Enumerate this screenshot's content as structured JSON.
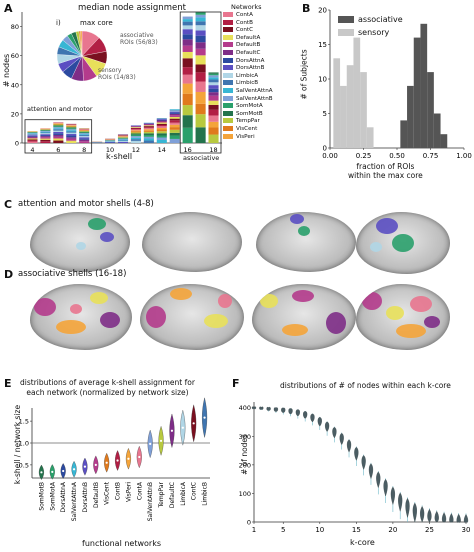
{
  "panels": {
    "A": {
      "letter": "A",
      "title": "median node assignment",
      "ylabel": "# nodes",
      "xlabel": "k-shell",
      "box_label_left": "attention and motor",
      "box_label_right": "associative",
      "inset_label": "i)",
      "inset_max_core": "max core",
      "inset_assoc": "associative\nROIs (56/83)",
      "inset_sensory": "sensory\nROIs (14/83)",
      "legend_title": "Networks",
      "networks": [
        "ContA",
        "ContB",
        "ContC",
        "DefaultA",
        "DefaultB",
        "DefaultC",
        "DorsAttnA",
        "DorsAttnB",
        "LimbicA",
        "LimbicB",
        "SalVentAttnA",
        "SalVentAttnB",
        "SomMotA",
        "SomMotB",
        "TempPar",
        "VisCent",
        "VisPeri"
      ],
      "network_colors": [
        "#e8768f",
        "#b21f44",
        "#7a1020",
        "#e8e05a",
        "#b43b8c",
        "#7e2d87",
        "#2c4aa0",
        "#5b4fc2",
        "#b0d6e6",
        "#3f75b0",
        "#38b6d4",
        "#7fa0d8",
        "#2aa06b",
        "#23734c",
        "#b8c93f",
        "#e07a1d",
        "#f4a43a"
      ],
      "y_ticks": [
        "0",
        "20",
        "40",
        "60",
        "80"
      ],
      "chart_data": {
        "type": "bar",
        "stacked": true,
        "categories": [
          "4",
          "5",
          "6",
          "7",
          "8",
          "9",
          "10",
          "11",
          "12",
          "13",
          "14",
          "15",
          "16",
          "17",
          "18"
        ],
        "totals": [
          8,
          10,
          14,
          13,
          10,
          1,
          3,
          6,
          12,
          14,
          17,
          23,
          86,
          89,
          48
        ],
        "x_tick_labels": [
          "4",
          "6",
          "8",
          "10",
          "12",
          "14",
          "16",
          "18"
        ],
        "ylim": [
          0,
          90
        ]
      },
      "pie_chart": {
        "type": "pie",
        "values": [
          12,
          10,
          8,
          10,
          9,
          8,
          7,
          6,
          6,
          5,
          5,
          4,
          3,
          3,
          2,
          1,
          1
        ]
      }
    },
    "B": {
      "letter": "B",
      "ylabel": "# of Subjects",
      "xlabel": "fraction of ROIs\nwithin the max core",
      "legend": [
        "associative",
        "sensory"
      ],
      "colors": {
        "associative": "#555555",
        "sensory": "#c8c8c8"
      },
      "x_ticks": [
        "0.00",
        "0.25",
        "0.50",
        "0.75",
        "1.00"
      ],
      "y_ticks": [
        "0",
        "5",
        "10",
        "15",
        "20"
      ],
      "chart_data": {
        "type": "bar",
        "ylim": [
          0,
          20
        ],
        "xlim": [
          0,
          1
        ],
        "series": [
          {
            "name": "sensory",
            "bin_centers": [
              0.05,
              0.1,
              0.15,
              0.2,
              0.25,
              0.3
            ],
            "values": [
              13,
              9,
              12,
              16,
              11,
              3
            ]
          },
          {
            "name": "associative",
            "bin_centers": [
              0.55,
              0.6,
              0.65,
              0.7,
              0.75,
              0.8,
              0.85
            ],
            "values": [
              4,
              9,
              16,
              18,
              11,
              5,
              2
            ]
          }
        ]
      }
    },
    "C": {
      "letter": "C",
      "title": "attention and motor shells (4-8)"
    },
    "D": {
      "letter": "D",
      "title": "associative shells (16-18)"
    },
    "E": {
      "letter": "E",
      "title": "distributions of average k-shell assignment for\neach network (normalized by network size)",
      "ylabel": "k-shell / network size",
      "xlabel": "functional networks",
      "y_ticks": [
        "0.5",
        "1.0",
        "1.5"
      ],
      "chart_data": {
        "type": "scatter",
        "categories": [
          "SomMotB",
          "SomMotA",
          "DorsAttnA",
          "SalVentAttnA",
          "DorsAttnB",
          "DefaultB",
          "VisCent",
          "ContB",
          "VisPeri",
          "ContA",
          "SalVentAttnB",
          "TempPar",
          "DefaultC",
          "LimbicA",
          "ContC",
          "LimbicB"
        ],
        "values": [
          0.33,
          0.34,
          0.36,
          0.4,
          0.46,
          0.5,
          0.55,
          0.6,
          0.64,
          0.68,
          0.98,
          1.05,
          1.28,
          1.35,
          1.45,
          1.58
        ],
        "reference_line": 1.0,
        "ylim": [
          0.2,
          1.8
        ]
      },
      "violin_colors": [
        "#23734c",
        "#2aa06b",
        "#2c4aa0",
        "#38b6d4",
        "#5b4fc2",
        "#b43b8c",
        "#e07a1d",
        "#b21f44",
        "#f4a43a",
        "#e8768f",
        "#7fa0d8",
        "#b8c93f",
        "#7e2d87",
        "#b0d6e6",
        "#7a1020",
        "#3f75b0"
      ]
    },
    "F": {
      "letter": "F",
      "title": "distributions of # of nodes within each k-core",
      "ylabel": "# of nodes",
      "xlabel": "k-core",
      "x_ticks": [
        "1",
        "5",
        "10",
        "15",
        "20",
        "25",
        "30"
      ],
      "y_ticks": [
        "0",
        "100",
        "200",
        "300",
        "400"
      ],
      "violin_color": "#4b5d63",
      "accent_color": "#6fb9c9",
      "chart_data": {
        "type": "scatter",
        "x": [
          1,
          2,
          3,
          4,
          5,
          6,
          7,
          8,
          9,
          10,
          11,
          12,
          13,
          14,
          15,
          16,
          17,
          18,
          19,
          20,
          21,
          22,
          23,
          24,
          25,
          26,
          27,
          28,
          29,
          30
        ],
        "values": [
          400,
          399,
          397,
          395,
          393,
          390,
          385,
          378,
          368,
          355,
          338,
          318,
          296,
          272,
          245,
          215,
          185,
          155,
          128,
          100,
          78,
          58,
          42,
          30,
          20,
          13,
          8,
          5,
          3,
          2
        ],
        "ylim": [
          0,
          420
        ],
        "xlim": [
          1,
          30
        ]
      }
    }
  }
}
